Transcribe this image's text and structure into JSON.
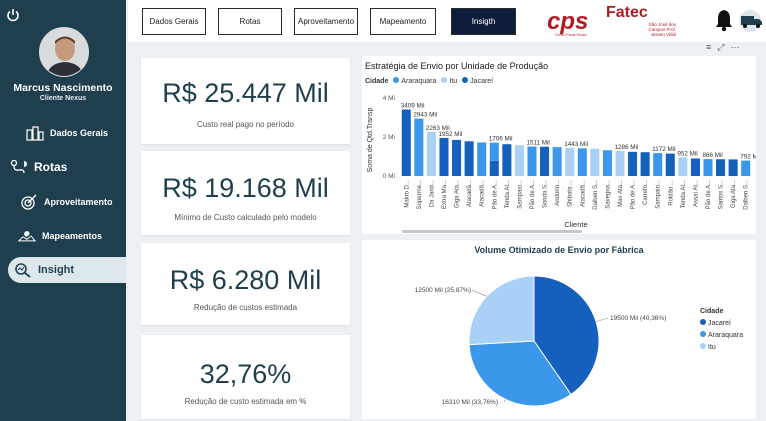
{
  "sidebar": {
    "user_name": "Marcus Nascimento",
    "user_role": "Cliente Nexus",
    "items": [
      {
        "label": "Dados Gerais",
        "icon": "buildings-icon"
      },
      {
        "label": "Rotas",
        "icon": "route-icon"
      },
      {
        "label": "Aproveitamento",
        "icon": "target-icon"
      },
      {
        "label": "Mapeamentos",
        "icon": "map-icon"
      },
      {
        "label": "Insight",
        "icon": "magnifier-icon"
      }
    ],
    "active_index": 4
  },
  "tabs": [
    {
      "label": "Dados Gerais"
    },
    {
      "label": "Rotas"
    },
    {
      "label": "Aproveitamento"
    },
    {
      "label": "Mapeamento"
    },
    {
      "label": "Insigth"
    }
  ],
  "active_tab": 4,
  "logos": {
    "cps": "cps",
    "cps_sub": "Centro Paula Souza",
    "fatec": "Fatec",
    "fatec_sub": "São José dos Campos Prof. Jessen Vidal"
  },
  "kpis": [
    {
      "value": "R$ 25.447 Mil",
      "label": "Custo real pago no período"
    },
    {
      "value": "R$ 19.168 Mil",
      "label": "Mínimo de Custo calculado pelo modelo"
    },
    {
      "value": "R$ 6.280 Mil",
      "label": "Redução de custos estimada"
    },
    {
      "value": "32,76%",
      "label": "Redução de custo estimada em %"
    }
  ],
  "colors": {
    "jacarei": "#1560bd",
    "araraquara": "#3a97ea",
    "itu": "#a9d1f7",
    "sidebar": "#1f3f4e"
  },
  "bar_chart": {
    "title": "Estratégia de Envio por Unidade de Produção",
    "legend_title": "Cidade",
    "legend": [
      "Araraquara",
      "Itu",
      "Jacareí"
    ],
    "y_label": "Soma de Qtd.Transp",
    "x_label": "Cliente",
    "y_ticks": [
      "4 Mi",
      "2 Mi",
      "0 Mi"
    ]
  },
  "pie_chart": {
    "title": "Volume Otimizado de Envio por Fábrica",
    "legend_title": "Cidade",
    "legend": [
      "Jacareí",
      "Araraquara",
      "Itu"
    ],
    "slice_labels": [
      "19500 Mil (40,36%)",
      "16310 Mil (33,76%)",
      "12500 Mil (25,87%)"
    ]
  },
  "chart_data": [
    {
      "type": "bar",
      "title": "Estratégia de Envio por Unidade de Produção",
      "xlabel": "Cliente",
      "ylabel": "Soma de Qtd.Transp",
      "ylim": [
        0,
        4000
      ],
      "y_unit": "Mil",
      "categories": [
        "Makro D...",
        "Superme...",
        "Da Jardi...",
        "Extra Ma...",
        "Giga Ata...",
        "Atacadã...",
        "Atacadã...",
        "Pão de A...",
        "Tenda At...",
        "Sampaio...",
        "Pão de A...",
        "Sonda S...",
        "Andorin...",
        "Shibata ...",
        "Atacadã...",
        "Dalben S...",
        "Savegna...",
        "Max Ata...",
        "Pão de A...",
        "Carrefo...",
        "Sampaio...",
        "Roldão ...",
        "Tenda At...",
        "Assaí At...",
        "Pão de A...",
        "Santos S...",
        "Giga Ata...",
        "Dalben S..."
      ],
      "values": [
        3409,
        2943,
        2263,
        1952,
        1850,
        1780,
        1720,
        1706,
        1630,
        1580,
        1511,
        1500,
        1480,
        1443,
        1420,
        1400,
        1320,
        1286,
        1240,
        1220,
        1172,
        1150,
        952,
        900,
        866,
        860,
        850,
        792
      ],
      "value_labels": {
        "0": "3409 Mil",
        "1": "2943 Mil",
        "2": "2263 Mil",
        "3": "1952 Mil",
        "7": "1706 Mil",
        "10": "1511 Mil",
        "13": "1443 Mil",
        "17": "1286 Mil",
        "20": "1172 Mil",
        "22": "952 Mil",
        "24": "866 Mil",
        "27": "792 Mil"
      },
      "segments": [
        [
          [
            "Jacareí",
            3409
          ]
        ],
        [
          [
            "Araraquara",
            2943
          ]
        ],
        [
          [
            "Itu",
            2263
          ]
        ],
        [
          [
            "Jacareí",
            1952
          ]
        ],
        [
          [
            "Jacareí",
            1850
          ]
        ],
        [
          [
            "Jacareí",
            1780
          ]
        ],
        [
          [
            "Araraquara",
            1720
          ]
        ],
        [
          [
            "Jacareí",
            780
          ],
          [
            "Araraquara",
            926
          ]
        ],
        [
          [
            "Jacareí",
            1630
          ]
        ],
        [
          [
            "Itu",
            1580
          ]
        ],
        [
          [
            "Araraquara",
            1511
          ]
        ],
        [
          [
            "Jacareí",
            1500
          ]
        ],
        [
          [
            "Araraquara",
            1480
          ]
        ],
        [
          [
            "Itu",
            1443
          ]
        ],
        [
          [
            "Araraquara",
            1420
          ]
        ],
        [
          [
            "Itu",
            1400
          ]
        ],
        [
          [
            "Araraquara",
            1320
          ]
        ],
        [
          [
            "Itu",
            1286
          ]
        ],
        [
          [
            "Jacareí",
            1240
          ]
        ],
        [
          [
            "Jacareí",
            1220
          ]
        ],
        [
          [
            "Araraquara",
            1172
          ]
        ],
        [
          [
            "Jacareí",
            1150
          ]
        ],
        [
          [
            "Itu",
            952
          ]
        ],
        [
          [
            "Jacareí",
            900
          ]
        ],
        [
          [
            "Araraquara",
            866
          ]
        ],
        [
          [
            "Jacareí",
            860
          ]
        ],
        [
          [
            "Jacareí",
            850
          ]
        ],
        [
          [
            "Araraquara",
            792
          ]
        ]
      ]
    },
    {
      "type": "pie",
      "title": "Volume Otimizado de Envio por Fábrica",
      "labels": [
        "Jacareí",
        "Araraquara",
        "Itu"
      ],
      "values": [
        19500,
        16310,
        12500
      ],
      "percent": [
        40.36,
        33.76,
        25.87
      ],
      "legend_position": "right"
    }
  ]
}
